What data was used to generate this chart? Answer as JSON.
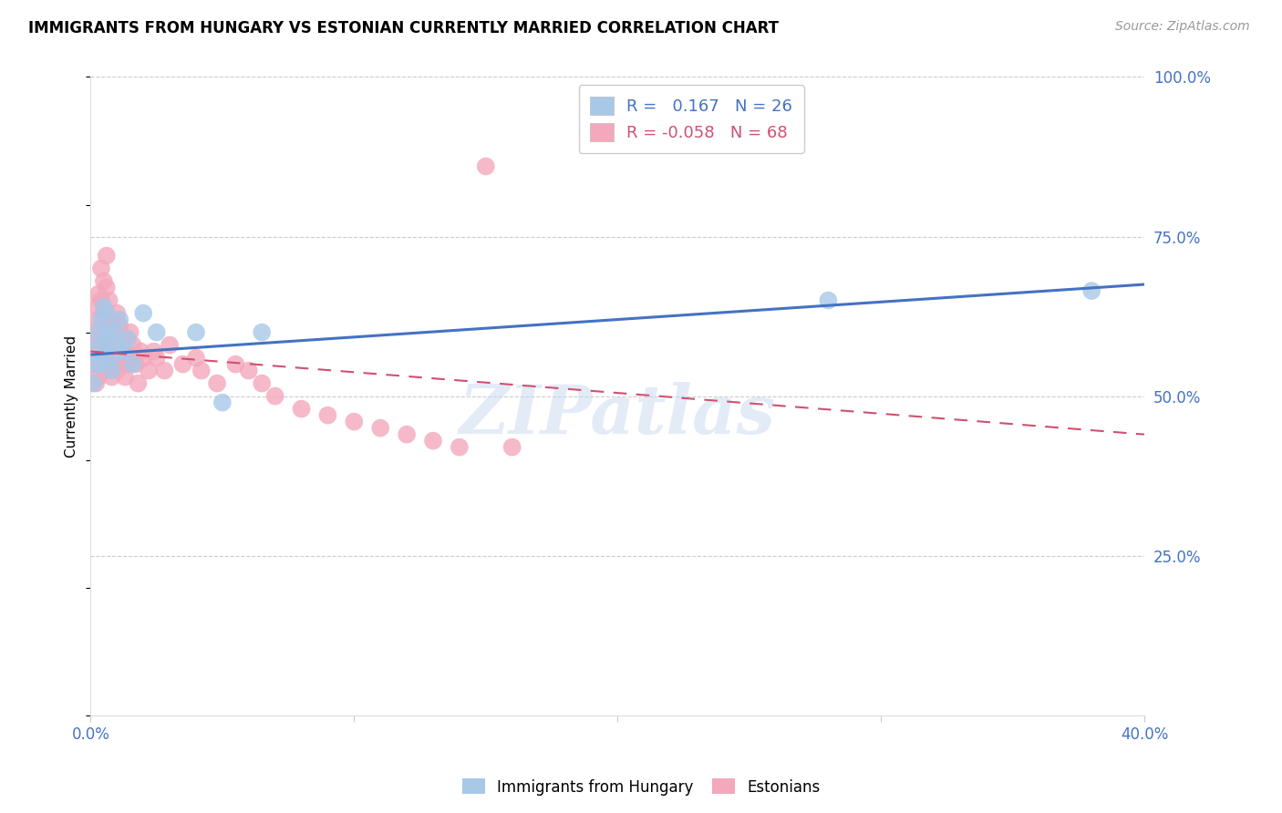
{
  "title": "IMMIGRANTS FROM HUNGARY VS ESTONIAN CURRENTLY MARRIED CORRELATION CHART",
  "source": "Source: ZipAtlas.com",
  "ylabel": "Currently Married",
  "xlim": [
    0.0,
    0.4
  ],
  "ylim": [
    0.0,
    1.0
  ],
  "hungary_R": 0.167,
  "hungary_N": 26,
  "estonian_R": -0.058,
  "estonian_N": 68,
  "hungary_color": "#a8c8e8",
  "estonian_color": "#f4a8bc",
  "hungary_line_color": "#4472c4",
  "estonian_line_color": "#d05070",
  "watermark": "ZIPatlas",
  "hungary_line_x0": 0.0,
  "hungary_line_y0": 0.565,
  "hungary_line_x1": 0.4,
  "hungary_line_y1": 0.675,
  "estonian_line_x0": 0.0,
  "estonian_line_y0": 0.57,
  "estonian_line_x1": 0.4,
  "estonian_line_y1": 0.44,
  "hungary_x": [
    0.001,
    0.002,
    0.003,
    0.003,
    0.004,
    0.004,
    0.005,
    0.005,
    0.006,
    0.006,
    0.007,
    0.008,
    0.008,
    0.009,
    0.01,
    0.011,
    0.012,
    0.014,
    0.016,
    0.02,
    0.025,
    0.04,
    0.05,
    0.065,
    0.28,
    0.38
  ],
  "hungary_y": [
    0.52,
    0.55,
    0.58,
    0.6,
    0.62,
    0.55,
    0.57,
    0.64,
    0.63,
    0.58,
    0.6,
    0.56,
    0.54,
    0.6,
    0.58,
    0.62,
    0.57,
    0.59,
    0.55,
    0.63,
    0.6,
    0.6,
    0.49,
    0.6,
    0.65,
    0.665
  ],
  "estonian_x": [
    0.001,
    0.001,
    0.002,
    0.002,
    0.002,
    0.003,
    0.003,
    0.003,
    0.003,
    0.004,
    0.004,
    0.004,
    0.004,
    0.005,
    0.005,
    0.005,
    0.005,
    0.006,
    0.006,
    0.006,
    0.006,
    0.007,
    0.007,
    0.007,
    0.008,
    0.008,
    0.008,
    0.009,
    0.009,
    0.01,
    0.01,
    0.01,
    0.011,
    0.011,
    0.012,
    0.012,
    0.013,
    0.013,
    0.014,
    0.015,
    0.015,
    0.016,
    0.017,
    0.018,
    0.019,
    0.02,
    0.022,
    0.024,
    0.025,
    0.028,
    0.03,
    0.035,
    0.04,
    0.042,
    0.048,
    0.055,
    0.06,
    0.065,
    0.07,
    0.08,
    0.09,
    0.1,
    0.11,
    0.12,
    0.13,
    0.14,
    0.15,
    0.16
  ],
  "estonian_y": [
    0.6,
    0.55,
    0.64,
    0.58,
    0.52,
    0.66,
    0.62,
    0.57,
    0.53,
    0.7,
    0.65,
    0.6,
    0.55,
    0.68,
    0.63,
    0.58,
    0.54,
    0.72,
    0.67,
    0.62,
    0.57,
    0.65,
    0.6,
    0.56,
    0.62,
    0.57,
    0.53,
    0.6,
    0.55,
    0.63,
    0.58,
    0.54,
    0.61,
    0.57,
    0.59,
    0.55,
    0.57,
    0.53,
    0.55,
    0.6,
    0.56,
    0.58,
    0.55,
    0.52,
    0.57,
    0.56,
    0.54,
    0.57,
    0.56,
    0.54,
    0.58,
    0.55,
    0.56,
    0.54,
    0.52,
    0.55,
    0.54,
    0.52,
    0.5,
    0.48,
    0.47,
    0.46,
    0.45,
    0.44,
    0.43,
    0.42,
    0.86,
    0.42
  ]
}
